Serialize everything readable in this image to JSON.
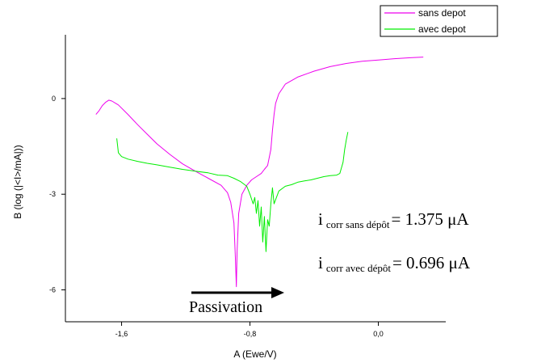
{
  "chart_data": {
    "type": "line",
    "xlabel": "A (Ewe/V)",
    "ylabel": "B (log (|<I>/mA|))",
    "xlim": [
      -1.95,
      0.42
    ],
    "ylim": [
      -7.0,
      2.0
    ],
    "x_ticks": [
      -1.6,
      -0.8,
      0.0
    ],
    "x_tick_labels": [
      "-1,6",
      "-0,8",
      "0,0"
    ],
    "y_ticks": [
      0,
      -3,
      -6
    ],
    "y_tick_labels": [
      "0",
      "-3",
      "-6"
    ],
    "grid": false,
    "legend_position": "top-right",
    "series": [
      {
        "name": "sans depot",
        "color": "#ee00ee",
        "x": [
          -1.76,
          -1.74,
          -1.72,
          -1.7,
          -1.68,
          -1.66,
          -1.62,
          -1.56,
          -1.5,
          -1.44,
          -1.38,
          -1.3,
          -1.22,
          -1.14,
          -1.06,
          -0.98,
          -0.94,
          -0.92,
          -0.9,
          -0.891,
          -0.885,
          -0.88,
          -0.87,
          -0.85,
          -0.82,
          -0.79,
          -0.76,
          -0.73,
          -0.71,
          -0.69,
          -0.67,
          -0.66,
          -0.65,
          -0.64,
          -0.62,
          -0.58,
          -0.5,
          -0.4,
          -0.3,
          -0.2,
          -0.1,
          0.0,
          0.1,
          0.2,
          0.28
        ],
        "y": [
          -0.5,
          -0.38,
          -0.22,
          -0.12,
          -0.05,
          -0.08,
          -0.2,
          -0.5,
          -0.82,
          -1.12,
          -1.42,
          -1.75,
          -2.05,
          -2.28,
          -2.5,
          -2.72,
          -2.95,
          -3.25,
          -3.9,
          -5.0,
          -5.9,
          -4.8,
          -3.6,
          -3.0,
          -2.72,
          -2.55,
          -2.45,
          -2.35,
          -2.22,
          -2.1,
          -1.6,
          -1.0,
          -0.5,
          -0.15,
          0.15,
          0.45,
          0.68,
          0.86,
          1.0,
          1.1,
          1.17,
          1.21,
          1.25,
          1.28,
          1.3
        ]
      },
      {
        "name": "avec depot",
        "color": "#00ee00",
        "x": [
          -1.63,
          -1.62,
          -1.6,
          -1.56,
          -1.5,
          -1.44,
          -1.38,
          -1.3,
          -1.22,
          -1.14,
          -1.06,
          -1.0,
          -0.94,
          -0.9,
          -0.86,
          -0.82,
          -0.8,
          -0.78,
          -0.77,
          -0.76,
          -0.75,
          -0.74,
          -0.73,
          -0.72,
          -0.71,
          -0.7,
          -0.69,
          -0.68,
          -0.67,
          -0.66,
          -0.65,
          -0.62,
          -0.58,
          -0.54,
          -0.5,
          -0.46,
          -0.42,
          -0.38,
          -0.34,
          -0.3,
          -0.26,
          -0.24,
          -0.22,
          -0.21,
          -0.2,
          -0.19
        ],
        "y": [
          -1.25,
          -1.7,
          -1.82,
          -1.9,
          -1.97,
          -2.03,
          -2.08,
          -2.15,
          -2.22,
          -2.28,
          -2.33,
          -2.4,
          -2.42,
          -2.5,
          -2.6,
          -2.75,
          -3.0,
          -3.3,
          -3.1,
          -3.6,
          -3.2,
          -4.0,
          -3.4,
          -4.5,
          -3.7,
          -4.8,
          -3.8,
          -4.0,
          -3.3,
          -2.8,
          -3.3,
          -2.9,
          -2.75,
          -2.7,
          -2.62,
          -2.58,
          -2.55,
          -2.5,
          -2.45,
          -2.42,
          -2.4,
          -2.35,
          -2.0,
          -1.6,
          -1.3,
          -1.05
        ]
      }
    ]
  },
  "annotations": {
    "line1_main": "i",
    "line1_sub": "corr sans dépôt",
    "line1_value": "= 1.375 μA",
    "line2_main": "i",
    "line2_sub": "corr avec dépôt",
    "line2_value": "= 0.696 μA",
    "passivation_label": "Passivation"
  }
}
